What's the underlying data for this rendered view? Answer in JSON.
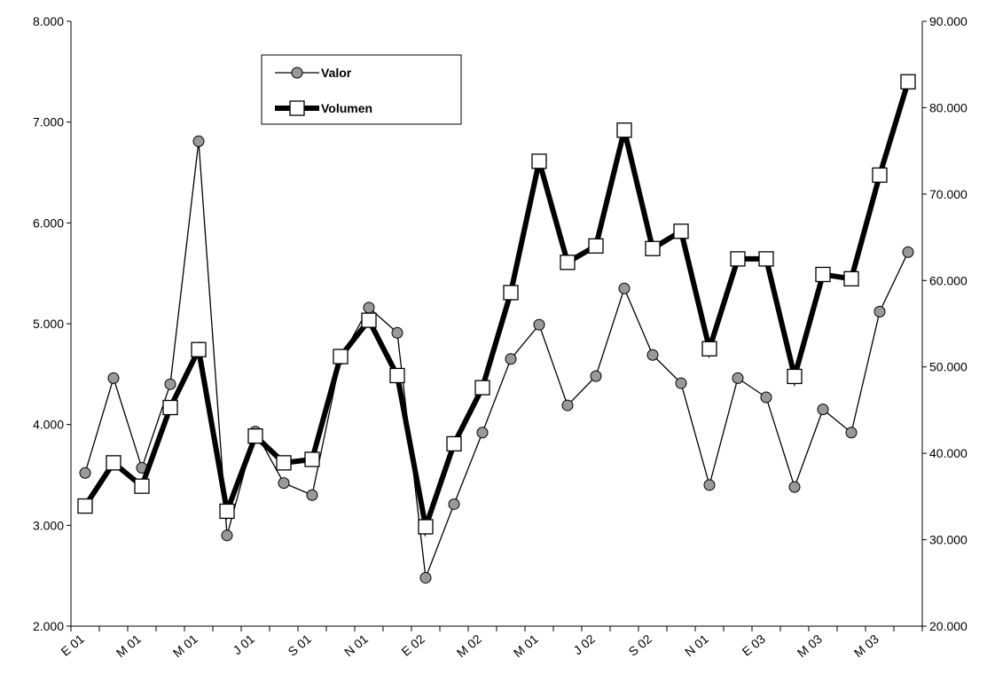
{
  "chart_data": {
    "type": "line",
    "categories": [
      "E 01",
      null,
      "M 01",
      null,
      "M 01",
      null,
      "J 01",
      null,
      "S 01",
      null,
      "N 01",
      null,
      "E 02",
      null,
      "M 02",
      null,
      "M 01",
      null,
      "J 02",
      null,
      "S 02",
      null,
      "N 01",
      null,
      "E 03",
      null,
      "M 03",
      null,
      "M 03",
      null
    ],
    "series": [
      {
        "name": "Valor",
        "color": "#000000",
        "marker_color": "#999999",
        "values": [
          3520,
          4460,
          3570,
          4400,
          6810,
          2900,
          3930,
          3420,
          3300,
          4650,
          5160,
          4910,
          2480,
          3210,
          3920,
          4650,
          4990,
          4190,
          4480,
          5350,
          4690,
          4410,
          3400,
          4460,
          4270,
          3380,
          4150,
          3920,
          5120,
          5710
        ]
      },
      {
        "name": "Volumen",
        "color": "#000000",
        "marker_color": "#ffffff",
        "axis": "y2",
        "values": [
          33900,
          38900,
          36200,
          45300,
          52000,
          33300,
          42000,
          38900,
          39300,
          51200,
          55400,
          49000,
          31500,
          41100,
          47600,
          58600,
          73800,
          62100,
          64000,
          77400,
          63700,
          65700,
          52100,
          62500,
          62500,
          48900,
          60700,
          60200,
          72200,
          83000
        ]
      }
    ],
    "ylim": [
      2000,
      8000
    ],
    "yticks": [
      {
        "value": 2000,
        "label": "2.000"
      },
      {
        "value": 3000,
        "label": "3.000"
      },
      {
        "value": 4000,
        "label": "4.000"
      },
      {
        "value": 5000,
        "label": "5.000"
      },
      {
        "value": 6000,
        "label": "6.000"
      },
      {
        "value": 7000,
        "label": "7.000"
      },
      {
        "value": 8000,
        "label": "8.000"
      }
    ],
    "y2lim": [
      20000,
      90000
    ],
    "y2ticks": [
      {
        "value": 20000,
        "label": "20.000"
      },
      {
        "value": 30000,
        "label": "30.000"
      },
      {
        "value": 40000,
        "label": "40.000"
      },
      {
        "value": 50000,
        "label": "50.000"
      },
      {
        "value": 60000,
        "label": "60.000"
      },
      {
        "value": 70000,
        "label": "70.000"
      },
      {
        "value": 80000,
        "label": "80.000"
      },
      {
        "value": 90000,
        "label": "90.000"
      }
    ],
    "grid": false,
    "legend": "top-left"
  }
}
